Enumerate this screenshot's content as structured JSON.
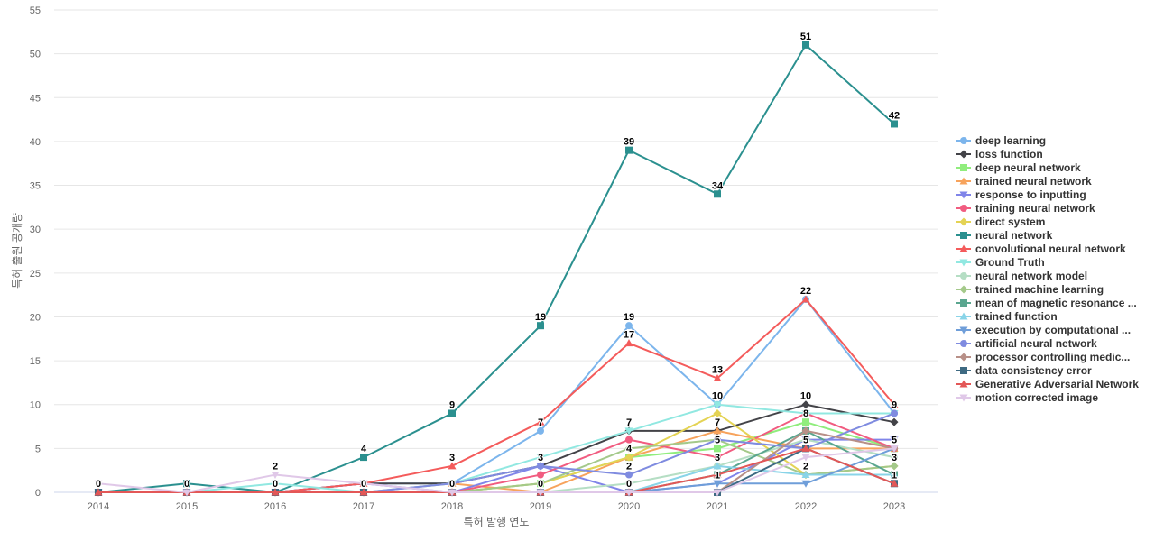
{
  "chart_data": {
    "type": "line",
    "xlabel": "특허 발행 연도",
    "ylabel": "특허 출원 공개량",
    "ylim": [
      0,
      55
    ],
    "yticks": [
      0,
      5,
      10,
      15,
      20,
      25,
      30,
      35,
      40,
      45,
      50,
      55
    ],
    "x": [
      "2014",
      "2015",
      "2016",
      "2017",
      "2018",
      "2019",
      "2020",
      "2021",
      "2022",
      "2023"
    ],
    "grid": true,
    "legend_position": "right",
    "series": [
      {
        "name": "deep learning",
        "color": "#7cb5ec",
        "marker": "circle",
        "values": [
          0,
          0,
          0,
          1,
          1,
          7,
          19,
          10,
          22,
          9
        ]
      },
      {
        "name": "loss function",
        "color": "#434348",
        "marker": "diamond",
        "values": [
          0,
          0,
          0,
          1,
          1,
          3,
          7,
          7,
          10,
          8
        ]
      },
      {
        "name": "deep neural network",
        "color": "#90ed7d",
        "marker": "square",
        "values": [
          0,
          0,
          0,
          0,
          0,
          1,
          4,
          5,
          8,
          5
        ]
      },
      {
        "name": "trained neural network",
        "color": "#f7a35c",
        "marker": "triangle",
        "values": [
          0,
          0,
          0,
          0,
          1,
          0,
          4,
          7,
          5,
          5
        ]
      },
      {
        "name": "response to inputting",
        "color": "#8085e9",
        "marker": "triangle-down",
        "values": [
          0,
          0,
          0,
          1,
          0,
          3,
          0,
          1,
          6,
          6
        ]
      },
      {
        "name": "training neural network",
        "color": "#f15c80",
        "marker": "circle",
        "values": [
          0,
          0,
          0,
          0,
          0,
          2,
          6,
          4,
          9,
          5
        ]
      },
      {
        "name": "direct system",
        "color": "#e4d354",
        "marker": "diamond",
        "values": [
          0,
          0,
          0,
          0,
          0,
          1,
          4,
          9,
          2,
          3
        ]
      },
      {
        "name": "neural network",
        "color": "#2b908f",
        "marker": "square",
        "values": [
          0,
          1,
          0,
          4,
          9,
          19,
          39,
          34,
          51,
          42
        ]
      },
      {
        "name": "convolutional neural network",
        "color": "#f45b5b",
        "marker": "triangle",
        "values": [
          0,
          0,
          0,
          1,
          3,
          8,
          17,
          13,
          22,
          10
        ]
      },
      {
        "name": "Ground Truth",
        "color": "#91e8e1",
        "marker": "triangle-down",
        "values": [
          0,
          0,
          1,
          0,
          1,
          4,
          7,
          10,
          9,
          9
        ]
      },
      {
        "name": "neural network model",
        "color": "#b5dec4",
        "marker": "circle",
        "values": [
          0,
          0,
          0,
          0,
          0,
          0,
          1,
          3,
          6,
          4
        ]
      },
      {
        "name": "trained machine learning",
        "color": "#a4c98a",
        "marker": "diamond",
        "values": [
          0,
          0,
          0,
          0,
          0,
          1,
          5,
          6,
          2,
          3
        ]
      },
      {
        "name": "mean of magnetic resonance ...",
        "color": "#5aa68f",
        "marker": "square",
        "values": [
          0,
          0,
          0,
          0,
          0,
          0,
          0,
          2,
          7,
          2
        ]
      },
      {
        "name": "trained function",
        "color": "#89d4e8",
        "marker": "triangle",
        "values": [
          0,
          0,
          0,
          0,
          0,
          0,
          0,
          3,
          2,
          2
        ]
      },
      {
        "name": "execution by computational ...",
        "color": "#6f9ed9",
        "marker": "triangle-down",
        "values": [
          0,
          0,
          0,
          0,
          0,
          0,
          0,
          1,
          1,
          5
        ]
      },
      {
        "name": "artificial neural network",
        "color": "#7f8be0",
        "marker": "circle",
        "values": [
          0,
          0,
          0,
          0,
          1,
          3,
          2,
          6,
          5,
          9
        ]
      },
      {
        "name": "processor controlling medic...",
        "color": "#b89088",
        "marker": "diamond",
        "values": [
          0,
          0,
          0,
          0,
          0,
          0,
          0,
          0,
          7,
          5
        ]
      },
      {
        "name": "data consistency error",
        "color": "#3e6a82",
        "marker": "square",
        "values": [
          0,
          0,
          0,
          0,
          0,
          0,
          0,
          0,
          5,
          1
        ]
      },
      {
        "name": "Generative Adversarial Network",
        "color": "#e35757",
        "marker": "triangle",
        "values": [
          0,
          0,
          0,
          0,
          0,
          0,
          0,
          2,
          5,
          1
        ]
      },
      {
        "name": "motion corrected image",
        "color": "#e0c8e8",
        "marker": "triangle-down",
        "values": [
          1,
          0,
          2,
          1,
          0,
          0,
          0,
          0,
          4,
          5
        ]
      }
    ],
    "data_labels": [
      {
        "x": "2014",
        "text": "0",
        "value": 0
      },
      {
        "x": "2015",
        "text": "0",
        "value": 0
      },
      {
        "x": "2016",
        "text": "2",
        "value": 2
      },
      {
        "x": "2016",
        "text": "0",
        "value": 0
      },
      {
        "x": "2017",
        "text": "4",
        "value": 4
      },
      {
        "x": "2017",
        "text": "0",
        "value": 0
      },
      {
        "x": "2018",
        "text": "9",
        "value": 9
      },
      {
        "x": "2018",
        "text": "3",
        "value": 3
      },
      {
        "x": "2018",
        "text": "0",
        "value": 0
      },
      {
        "x": "2019",
        "text": "19",
        "value": 19
      },
      {
        "x": "2019",
        "text": "7",
        "value": 7
      },
      {
        "x": "2019",
        "text": "3",
        "value": 3
      },
      {
        "x": "2019",
        "text": "0",
        "value": 0
      },
      {
        "x": "2020",
        "text": "39",
        "value": 39
      },
      {
        "x": "2020",
        "text": "19",
        "value": 19
      },
      {
        "x": "2020",
        "text": "17",
        "value": 17
      },
      {
        "x": "2020",
        "text": "7",
        "value": 7
      },
      {
        "x": "2020",
        "text": "4",
        "value": 4
      },
      {
        "x": "2020",
        "text": "2",
        "value": 2
      },
      {
        "x": "2020",
        "text": "0",
        "value": 0
      },
      {
        "x": "2021",
        "text": "34",
        "value": 34
      },
      {
        "x": "2021",
        "text": "13",
        "value": 13
      },
      {
        "x": "2021",
        "text": "10",
        "value": 10
      },
      {
        "x": "2021",
        "text": "7",
        "value": 7
      },
      {
        "x": "2021",
        "text": "5",
        "value": 5
      },
      {
        "x": "2021",
        "text": "3",
        "value": 3
      },
      {
        "x": "2021",
        "text": "1",
        "value": 1
      },
      {
        "x": "2022",
        "text": "51",
        "value": 51
      },
      {
        "x": "2022",
        "text": "22",
        "value": 22
      },
      {
        "x": "2022",
        "text": "10",
        "value": 10
      },
      {
        "x": "2022",
        "text": "8",
        "value": 8
      },
      {
        "x": "2022",
        "text": "5",
        "value": 5
      },
      {
        "x": "2022",
        "text": "2",
        "value": 2
      },
      {
        "x": "2023",
        "text": "42",
        "value": 42
      },
      {
        "x": "2023",
        "text": "9",
        "value": 9
      },
      {
        "x": "2023",
        "text": "5",
        "value": 5
      },
      {
        "x": "2023",
        "text": "3",
        "value": 3
      },
      {
        "x": "2023",
        "text": "1",
        "value": 1
      }
    ]
  }
}
